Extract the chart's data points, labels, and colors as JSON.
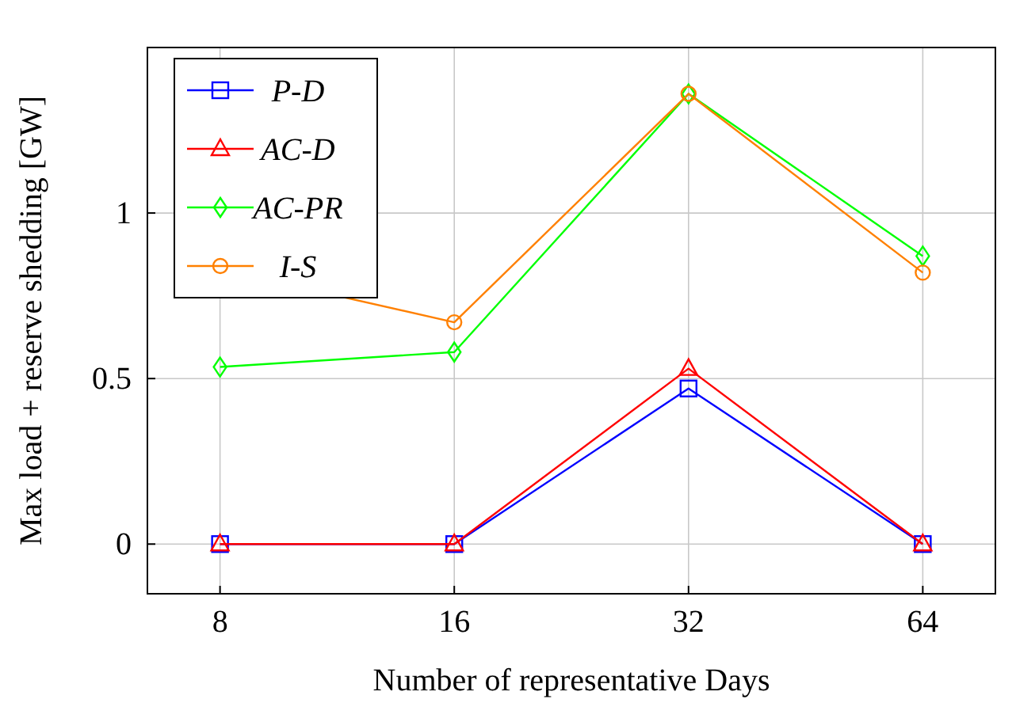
{
  "chart_data": {
    "type": "line",
    "xlabel": "Number of representative Days",
    "ylabel": "Max load + reserve shedding [GW]",
    "categories": [
      "8",
      "16",
      "32",
      "64"
    ],
    "ylim": [
      -0.15,
      1.5
    ],
    "yticks": [
      0,
      0.5,
      1
    ],
    "grid": true,
    "legend": "top left",
    "series": [
      {
        "name": "P-D",
        "color": "#0000ff",
        "marker": "square",
        "values": [
          0,
          0,
          0.47,
          0
        ]
      },
      {
        "name": "AC-D",
        "color": "#ff0000",
        "marker": "triangle",
        "values": [
          0,
          0,
          0.53,
          0
        ]
      },
      {
        "name": "AC-PR",
        "color": "#00ff00",
        "marker": "diamond",
        "values": [
          0.535,
          0.58,
          1.36,
          0.87
        ]
      },
      {
        "name": "I-S",
        "color": "#ff8000",
        "marker": "circle",
        "values": [
          0.83,
          0.67,
          1.36,
          0.82
        ]
      }
    ]
  }
}
